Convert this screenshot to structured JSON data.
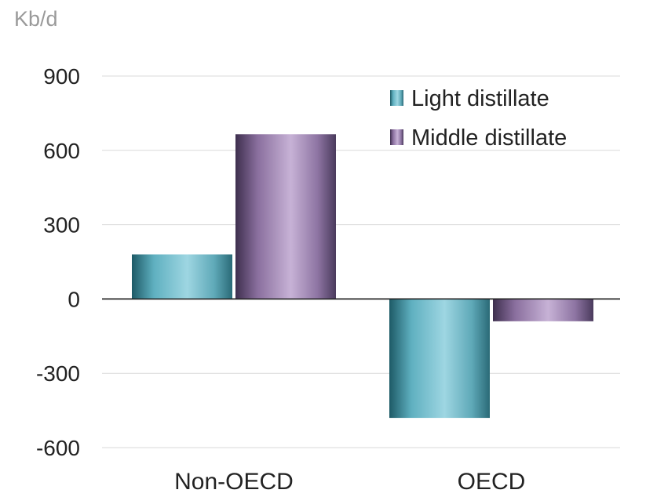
{
  "chart_data": {
    "type": "bar",
    "unit_label": "Kb/d",
    "categories": [
      "Non-OECD",
      "OECD"
    ],
    "series": [
      {
        "name": "Light distillate",
        "values": [
          180,
          -480
        ],
        "color": "#4aa3b3"
      },
      {
        "name": "Middle distillate",
        "values": [
          665,
          -90
        ],
        "color": "#8a6f9e"
      }
    ],
    "yticks": [
      900,
      600,
      300,
      0,
      -300,
      -600
    ],
    "ytick_labels": [
      "900",
      "600",
      "300",
      "0",
      "-300",
      "-600"
    ],
    "ylim": [
      -600,
      900
    ],
    "grid": true,
    "legend_position": "top-right"
  }
}
